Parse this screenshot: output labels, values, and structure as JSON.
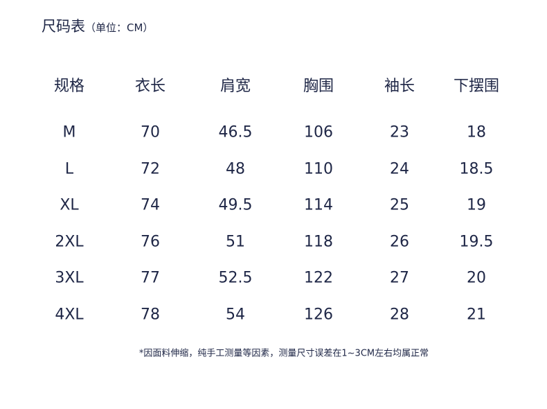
{
  "title": "尺码表",
  "unit": "（单位：CM）",
  "table": {
    "headers": [
      "规格",
      "衣长",
      "肩宽",
      "胸围",
      "袖长",
      "下摆围"
    ],
    "rows": [
      [
        "M",
        "70",
        "46.5",
        "106",
        "23",
        "18"
      ],
      [
        "L",
        "72",
        "48",
        "110",
        "24",
        "18.5"
      ],
      [
        "XL",
        "74",
        "49.5",
        "114",
        "25",
        "19"
      ],
      [
        "2XL",
        "76",
        "51",
        "118",
        "26",
        "19.5"
      ],
      [
        "3XL",
        "77",
        "52.5",
        "122",
        "27",
        "20"
      ],
      [
        "4XL",
        "78",
        "54",
        "126",
        "28",
        "21"
      ]
    ]
  },
  "note": "*因面料伸缩，纯手工测量等因素，测量尺寸误差在1~3CM左右均属正常",
  "colors": {
    "text": "#1e2646",
    "background": "#ffffff"
  }
}
